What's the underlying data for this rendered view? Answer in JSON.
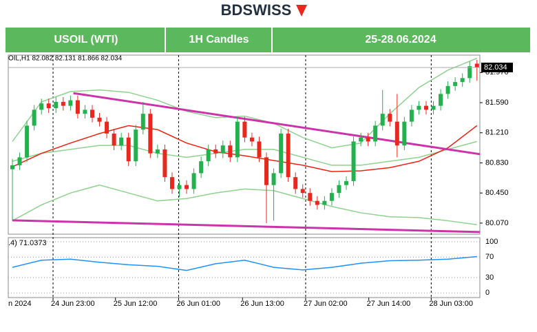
{
  "header": {
    "brand": "BDSWISS",
    "symbol": "USOIL (WTI)",
    "timeframe": "1H Candles",
    "dates": "25-28.06.2024"
  },
  "chart_data": [
    {
      "type": "candlestick",
      "info": "OIL,H1 82.082 82.131 81.866 82.034",
      "xlim": [
        -0.57,
        64.4
      ],
      "xticks": [
        {
          "value": -0.6,
          "label": "n 2024"
        },
        {
          "value": 5.6,
          "label": "24 Jun 23:00"
        },
        {
          "value": 14.2,
          "label": "25 Jun 12:00"
        },
        {
          "value": 22.9,
          "label": "26 Jun 01:00"
        },
        {
          "value": 31.7,
          "label": "26 Jun 13:00"
        },
        {
          "value": 40.4,
          "label": "27 Jun 02:00"
        },
        {
          "value": 49.1,
          "label": "27 Jun 14:00"
        },
        {
          "value": 57.7,
          "label": "28 Jun 03:00"
        }
      ],
      "ylim": [
        79.93,
        82.19
      ],
      "yticks": [
        {
          "value": 80.07,
          "label": "80.070"
        },
        {
          "value": 80.45,
          "label": "80.450"
        },
        {
          "value": 80.83,
          "label": "80.830"
        },
        {
          "value": 81.21,
          "label": "81.210"
        },
        {
          "value": 81.59,
          "label": "81.590"
        },
        {
          "value": 81.97,
          "label": "81.970"
        }
      ],
      "last_price": {
        "value": 82.034,
        "label": "82.034"
      },
      "up_color": "#22b14c",
      "down_color": "#e8281e",
      "open": [
        80.75,
        80.8,
        80.9,
        81.3,
        81.5,
        81.58,
        81.52,
        81.6,
        81.55,
        81.62,
        81.45,
        81.5,
        81.4,
        81.35,
        81.2,
        81.05,
        81.15,
        80.85,
        81.25,
        81.45,
        80.95,
        81.0,
        80.65,
        80.5,
        80.55,
        80.5,
        80.7,
        80.85,
        81.0,
        80.95,
        81.05,
        80.9,
        81.35,
        81.15,
        81.1,
        80.9,
        80.55,
        80.7,
        81.2,
        80.65,
        80.5,
        80.45,
        80.35,
        80.3,
        80.35,
        80.45,
        80.55,
        80.6,
        81.1,
        81.15,
        81.1,
        81.3,
        81.45,
        81.35,
        81.05,
        81.35,
        81.5,
        81.55,
        81.5,
        81.55,
        81.7,
        81.8,
        81.85,
        81.9,
        82.082
      ],
      "high": [
        80.88,
        80.96,
        81.36,
        81.56,
        81.64,
        81.64,
        81.66,
        81.66,
        81.68,
        81.68,
        81.56,
        81.56,
        81.46,
        81.41,
        81.26,
        81.21,
        81.21,
        81.31,
        81.6,
        81.51,
        81.06,
        81.06,
        80.71,
        80.61,
        80.61,
        80.76,
        80.91,
        81.06,
        81.06,
        81.11,
        81.11,
        81.41,
        81.41,
        81.21,
        81.16,
        80.96,
        80.76,
        81.26,
        81.26,
        80.71,
        80.56,
        80.51,
        80.41,
        80.41,
        80.51,
        80.61,
        80.66,
        81.16,
        81.21,
        81.21,
        81.36,
        81.75,
        81.51,
        81.7,
        81.41,
        81.56,
        81.61,
        81.61,
        81.61,
        81.76,
        81.86,
        81.91,
        81.96,
        82.11,
        82.131
      ],
      "low": [
        80.1,
        80.74,
        80.84,
        81.24,
        81.44,
        81.46,
        81.46,
        81.49,
        81.49,
        81.39,
        81.39,
        81.34,
        81.29,
        81.14,
        80.99,
        80.99,
        80.79,
        80.79,
        81.19,
        80.89,
        80.89,
        80.59,
        80.44,
        80.4,
        80.44,
        80.44,
        80.64,
        80.79,
        80.89,
        80.89,
        80.84,
        80.84,
        81.09,
        81.04,
        80.84,
        80.07,
        80.1,
        80.64,
        80.59,
        80.44,
        80.39,
        80.29,
        80.24,
        80.24,
        80.29,
        80.39,
        80.49,
        80.54,
        81.04,
        81.04,
        81.04,
        81.24,
        81.29,
        80.9,
        80.99,
        81.29,
        81.44,
        81.44,
        81.44,
        81.49,
        81.64,
        81.74,
        81.79,
        81.84,
        81.866
      ],
      "close": [
        80.8,
        80.9,
        81.3,
        81.5,
        81.58,
        81.52,
        81.6,
        81.55,
        81.62,
        81.45,
        81.5,
        81.4,
        81.35,
        81.2,
        81.05,
        81.15,
        80.85,
        81.25,
        81.45,
        80.95,
        81.0,
        80.65,
        80.5,
        80.55,
        80.5,
        80.7,
        80.85,
        81.0,
        80.95,
        81.05,
        80.9,
        81.35,
        81.15,
        81.1,
        80.9,
        80.55,
        80.7,
        81.2,
        80.65,
        80.5,
        80.45,
        80.35,
        80.3,
        80.35,
        80.45,
        80.55,
        80.6,
        81.1,
        81.15,
        81.1,
        81.3,
        81.45,
        81.35,
        81.05,
        81.35,
        81.5,
        81.55,
        81.5,
        81.55,
        81.7,
        81.8,
        81.85,
        81.9,
        82.05,
        82.034
      ],
      "lines": [
        {
          "color": "#8fd18f",
          "x": [
            0,
            4,
            8,
            12,
            16,
            20,
            24,
            28,
            32,
            36,
            40,
            44,
            48,
            52,
            56,
            60,
            64
          ],
          "values": [
            81.1,
            81.6,
            81.73,
            81.75,
            81.72,
            81.62,
            81.48,
            81.4,
            81.42,
            81.33,
            81.15,
            81.02,
            81.08,
            81.45,
            81.78,
            82.0,
            82.15
          ]
        },
        {
          "color": "#8fd18f",
          "x": [
            0,
            4,
            8,
            12,
            16,
            20,
            24,
            28,
            32,
            36,
            40,
            44,
            48,
            52,
            56,
            60,
            64
          ],
          "values": [
            80.85,
            80.95,
            81.0,
            81.05,
            81.05,
            80.95,
            80.9,
            80.95,
            81.0,
            81.0,
            80.9,
            80.8,
            80.8,
            80.85,
            80.9,
            81.0,
            81.1
          ]
        },
        {
          "color": "#8fd18f",
          "x": [
            0,
            4,
            8,
            12,
            16,
            20,
            24,
            28,
            32,
            36,
            40,
            44,
            48,
            52,
            56,
            60,
            64
          ],
          "values": [
            80.1,
            80.3,
            80.45,
            80.55,
            80.45,
            80.35,
            80.38,
            80.45,
            80.5,
            80.48,
            80.38,
            80.28,
            80.2,
            80.15,
            80.14,
            80.1,
            80.05
          ]
        },
        {
          "color": "#ee2211",
          "x": [
            0,
            4,
            8,
            12,
            16,
            20,
            24,
            28,
            32,
            36,
            40,
            44,
            48,
            52,
            56,
            60,
            64
          ],
          "values": [
            80.78,
            80.95,
            81.08,
            81.2,
            81.3,
            81.25,
            81.08,
            80.97,
            80.92,
            80.86,
            80.8,
            80.72,
            80.73,
            80.77,
            80.85,
            81.02,
            81.3
          ]
        },
        {
          "color": "#cc33aa",
          "x": [
            8.4,
            64.4
          ],
          "values": [
            81.71,
            80.94
          ]
        },
        {
          "color": "#cc33aa",
          "x": [
            0,
            64.4
          ],
          "values": [
            80.105,
            79.957
          ]
        }
      ]
    },
    {
      "type": "line",
      "label": ".4) 71.0373",
      "ylim": [
        -9,
        108
      ],
      "yticks": [
        0,
        30,
        70,
        100
      ],
      "series": [
        {
          "color": "#1e90ff",
          "x": [
            0,
            4,
            8,
            12,
            16,
            20,
            24,
            28,
            32,
            36,
            40,
            44,
            48,
            52,
            56,
            60,
            64
          ],
          "values": [
            50,
            64,
            66,
            60,
            55,
            52,
            44,
            57,
            64,
            50,
            45,
            50,
            58,
            63,
            64,
            66,
            71
          ]
        }
      ]
    }
  ]
}
